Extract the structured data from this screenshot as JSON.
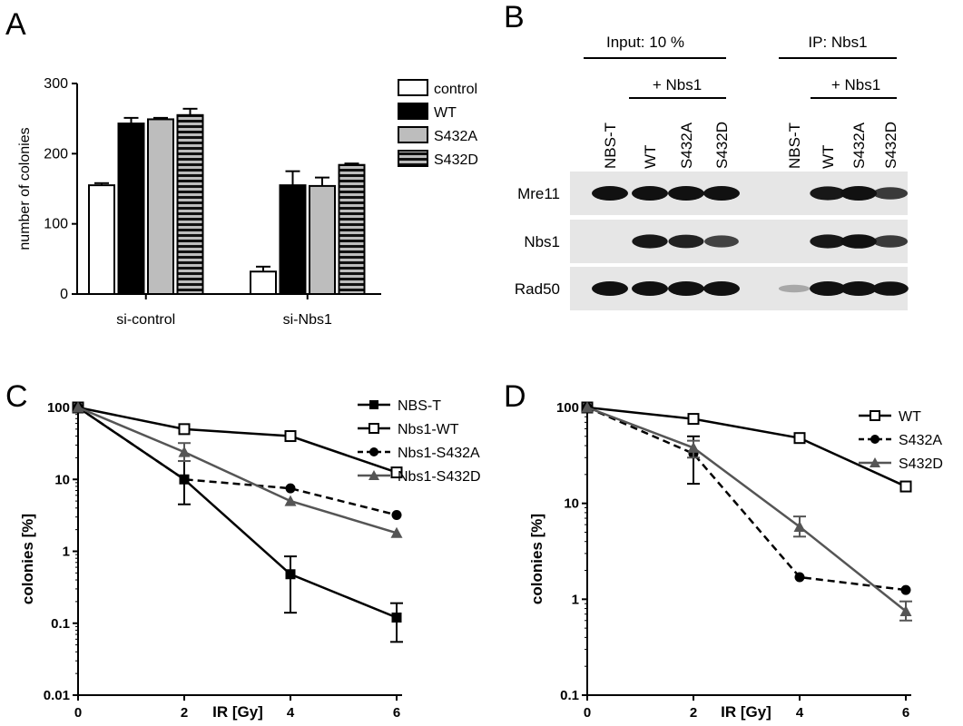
{
  "panels": {
    "a": "A",
    "b": "B",
    "c": "C",
    "d": "D"
  },
  "colors": {
    "black": "#000000",
    "gray": "#555555",
    "light_gray": "#bdbdbd",
    "white": "#ffffff",
    "blot_bg": "#e6e6e6",
    "band": "#111111"
  },
  "chart_data": [
    {
      "panel": "A",
      "type": "bar",
      "title": "",
      "xlabel": "",
      "ylabel": "number of colonies",
      "ylim": [
        0,
        300
      ],
      "yticks": [
        "0",
        "100",
        "200",
        "300"
      ],
      "categories": [
        "si-control",
        "si-Nbs1"
      ],
      "series": [
        {
          "name": "control",
          "fill": "white",
          "values": [
            155,
            32
          ],
          "errors": [
            3,
            7
          ]
        },
        {
          "name": "WT",
          "fill": "black",
          "values": [
            243,
            155
          ],
          "errors": [
            8,
            20
          ]
        },
        {
          "name": "S432A",
          "fill": "gray",
          "values": [
            249,
            154
          ],
          "errors": [
            2,
            12
          ]
        },
        {
          "name": "S432D",
          "fill": "striped",
          "values": [
            255,
            184
          ],
          "errors": [
            9,
            2
          ]
        }
      ],
      "legend": "right"
    },
    {
      "panel": "C",
      "type": "line",
      "xlabel": "IR [Gy]",
      "ylabel": "colonies [%]",
      "yscale": "log",
      "ylim": [
        0.01,
        100
      ],
      "xlim": [
        0,
        6
      ],
      "xticks": [
        "0",
        "2",
        "4",
        "6"
      ],
      "yticks": [
        "0.01",
        "0.1",
        "1",
        "10",
        "100"
      ],
      "x": [
        0,
        2,
        4,
        6
      ],
      "series": [
        {
          "name": "NBS-T",
          "marker": "filled-square",
          "dash": "solid",
          "color": "black",
          "values": [
            100,
            10,
            0.48,
            0.12
          ],
          "err_low": [
            100,
            4.5,
            0.14,
            0.055
          ],
          "err_high": [
            100,
            18,
            0.85,
            0.19
          ]
        },
        {
          "name": "Nbs1-WT",
          "marker": "open-square",
          "dash": "solid",
          "color": "black",
          "values": [
            100,
            50,
            40,
            12.5
          ],
          "err_low": [
            100,
            50,
            40,
            12.5
          ],
          "err_high": [
            100,
            50,
            40,
            12.5
          ]
        },
        {
          "name": "Nbs1-S432A",
          "marker": "circle",
          "dash": "dashed",
          "color": "black",
          "values": [
            100,
            10,
            7.5,
            3.2
          ],
          "err_low": [
            100,
            10,
            7.5,
            3.2
          ],
          "err_high": [
            100,
            10,
            7.5,
            3.2
          ]
        },
        {
          "name": "Nbs1-S432D",
          "marker": "triangle",
          "dash": "solid",
          "color": "gray",
          "values": [
            100,
            24,
            5,
            1.8
          ],
          "err_low": [
            100,
            18,
            5,
            1.8
          ],
          "err_high": [
            100,
            32,
            5,
            1.8
          ]
        }
      ],
      "legend": "top-right"
    },
    {
      "panel": "D",
      "type": "line",
      "xlabel": "IR [Gy]",
      "ylabel": "colonies [%]",
      "yscale": "log",
      "ylim": [
        0.1,
        100
      ],
      "xlim": [
        0,
        6
      ],
      "xticks": [
        "0",
        "2",
        "4",
        "6"
      ],
      "yticks": [
        "0.1",
        "1",
        "10",
        "100"
      ],
      "x": [
        0,
        2,
        4,
        6
      ],
      "series": [
        {
          "name": "WT",
          "marker": "open-square",
          "dash": "solid",
          "color": "black",
          "values": [
            100,
            76,
            48,
            15
          ],
          "err_low": [
            100,
            76,
            48,
            15
          ],
          "err_high": [
            100,
            76,
            48,
            15
          ]
        },
        {
          "name": "S432A",
          "marker": "circle",
          "dash": "dashed",
          "color": "black",
          "values": [
            100,
            33,
            1.7,
            1.25
          ],
          "err_low": [
            100,
            16,
            1.7,
            1.25
          ],
          "err_high": [
            100,
            50,
            1.7,
            1.25
          ]
        },
        {
          "name": "S432D",
          "marker": "triangle",
          "dash": "solid",
          "color": "gray",
          "values": [
            100,
            38,
            5.7,
            0.75
          ],
          "err_low": [
            100,
            30,
            4.5,
            0.6
          ],
          "err_high": [
            100,
            45,
            7.3,
            0.95
          ]
        }
      ],
      "legend": "top-right"
    }
  ],
  "blot": {
    "header_input": "Input: 10 %",
    "header_ip": "IP: Nbs1",
    "plus_nbs1": "+ Nbs1",
    "lanes": [
      "NBS-T",
      "WT",
      "S432A",
      "S432D",
      "NBS-T",
      "WT",
      "S432A",
      "S432D"
    ],
    "rows": [
      {
        "label": "Mre11",
        "intensity": [
          1,
          1,
          1,
          1,
          0,
          0.9,
          1,
          0.7
        ]
      },
      {
        "label": "Nbs1",
        "intensity": [
          0,
          0.9,
          0.85,
          0.65,
          0,
          0.9,
          0.95,
          0.7
        ]
      },
      {
        "label": "Rad50",
        "intensity": [
          1,
          1,
          1,
          1,
          0.05,
          1,
          1,
          0.95
        ]
      }
    ]
  }
}
